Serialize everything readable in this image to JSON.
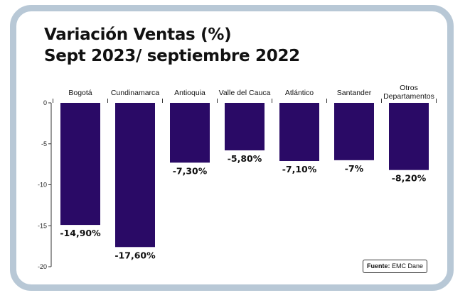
{
  "title": {
    "line1": "Variación Ventas (%)",
    "line2": "Sept 2023/ septiembre 2022"
  },
  "source": {
    "label": "Fuente:",
    "text": "EMC Dane"
  },
  "colors": {
    "bar": "#2a0a66",
    "frame": "#b8c8d6",
    "text": "#111111"
  },
  "chart_data": {
    "type": "bar",
    "title": "Variación Ventas (%) Sept 2023/ septiembre 2022",
    "categories": [
      "Bogotá",
      "Cundinamarca",
      "Antioquia",
      "Valle del Cauca",
      "Atlántico",
      "Santander",
      "Otros Departamentos"
    ],
    "values": [
      -14.9,
      -17.6,
      -7.3,
      -5.8,
      -7.1,
      -7.0,
      -8.2
    ],
    "data_labels": [
      "-14,90%",
      "-17,60%",
      "-7,30%",
      "-5,80%",
      "-7,10%",
      "-7%",
      "-8,20%"
    ],
    "ylim": [
      -20,
      0
    ],
    "yticks": [
      "0",
      "-5",
      "-10",
      "-15",
      "-20"
    ],
    "grid": false,
    "legend": "none"
  }
}
